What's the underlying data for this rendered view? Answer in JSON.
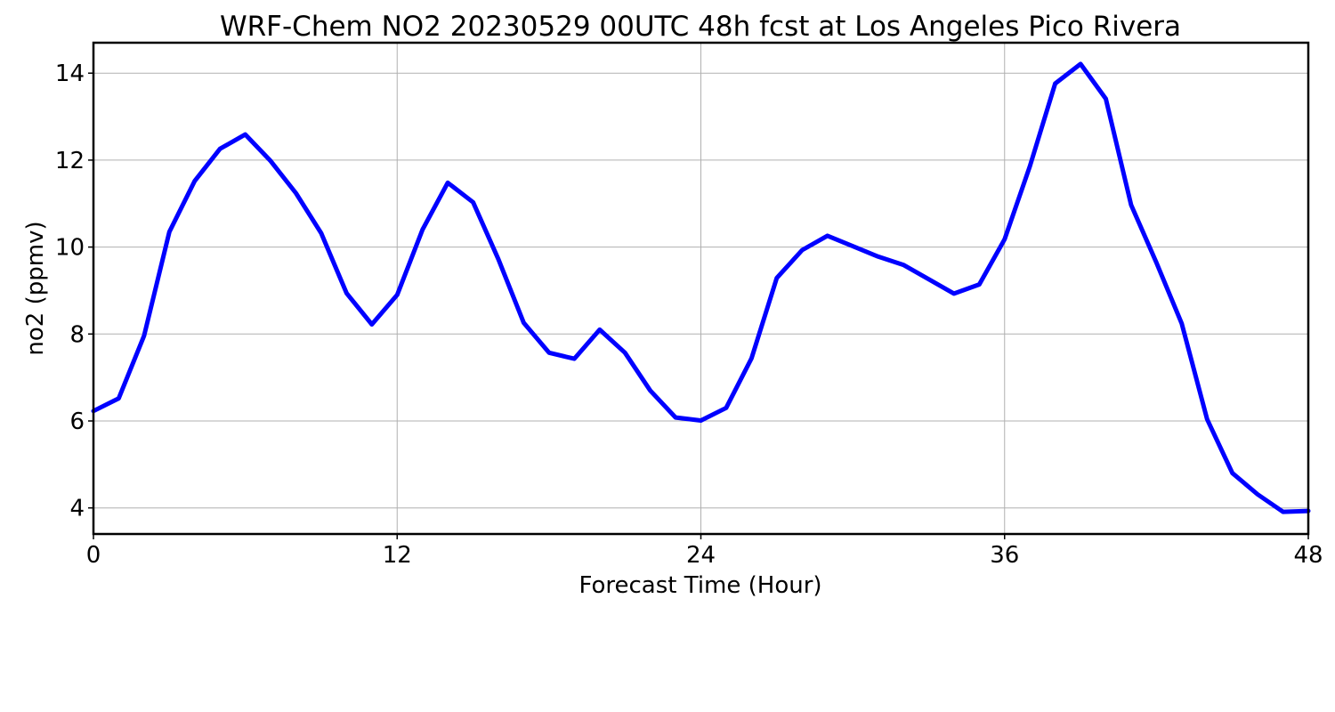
{
  "chart_data": {
    "type": "line",
    "title": "WRF-Chem NO2  20230529 00UTC 48h fcst at Los Angeles Pico Rivera",
    "xlabel": "Forecast Time (Hour)",
    "ylabel": "no2  (ppmv)",
    "xlim": [
      0,
      48
    ],
    "ylim": [
      3.4,
      14.7
    ],
    "xticks": [
      0,
      12,
      24,
      36,
      48
    ],
    "yticks": [
      4,
      6,
      8,
      10,
      12,
      14
    ],
    "grid": true,
    "x": [
      0,
      1,
      2,
      3,
      4,
      5,
      6,
      7,
      8,
      9,
      10,
      11,
      12,
      13,
      14,
      15,
      16,
      17,
      18,
      19,
      20,
      21,
      22,
      23,
      24,
      25,
      26,
      27,
      28,
      29,
      30,
      31,
      32,
      33,
      34,
      35,
      36,
      37,
      38,
      39,
      40,
      41,
      42,
      43,
      44,
      45,
      46,
      47,
      48
    ],
    "series": [
      {
        "color": "#0000ff",
        "values": [
          6.23,
          6.52,
          7.96,
          10.35,
          11.52,
          12.26,
          12.59,
          11.98,
          11.24,
          10.32,
          8.94,
          8.22,
          8.9,
          10.4,
          11.48,
          11.03,
          9.72,
          8.26,
          7.57,
          7.43,
          8.1,
          7.57,
          6.7,
          6.08,
          6.01,
          6.3,
          7.44,
          9.29,
          9.93,
          10.26,
          10.02,
          9.78,
          9.59,
          9.26,
          8.93,
          9.14,
          10.18,
          11.86,
          13.76,
          14.21,
          13.41,
          10.97,
          9.64,
          8.24,
          6.04,
          4.8,
          4.31,
          3.91,
          3.93
        ]
      }
    ]
  }
}
